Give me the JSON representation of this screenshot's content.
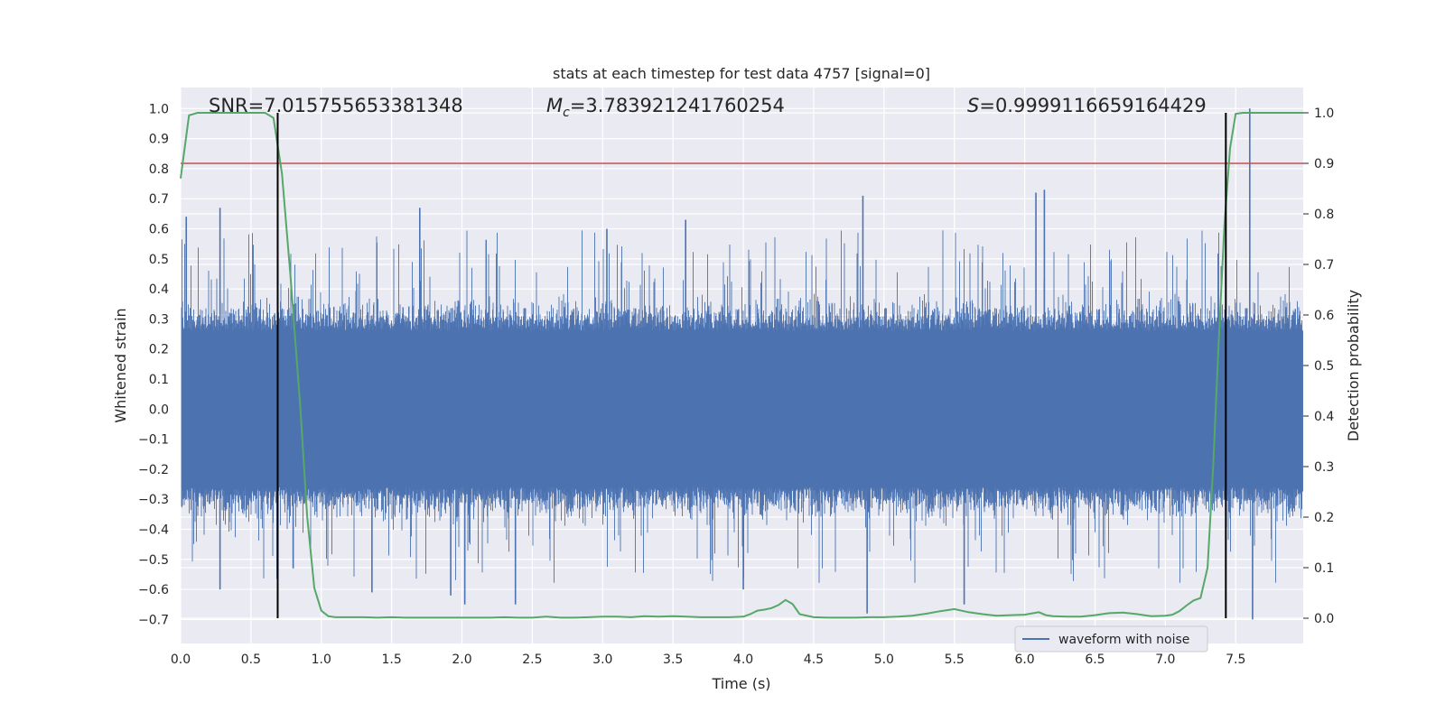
{
  "chart_data": {
    "type": "line",
    "title": "stats at each timestep for test data 4757 [signal=0]",
    "xlabel": "Time (s)",
    "ylabel_left": "Whitened strain",
    "ylabel_right": "Detection probability",
    "xlim": [
      0.0,
      7.98
    ],
    "ylim_left": [
      -0.78,
      1.07
    ],
    "ylim_right": [
      -0.05,
      1.05
    ],
    "x_ticks": [
      "0.0",
      "0.5",
      "1.0",
      "1.5",
      "2.0",
      "2.5",
      "3.0",
      "3.5",
      "4.0",
      "4.5",
      "5.0",
      "5.5",
      "6.0",
      "6.5",
      "7.0",
      "7.5"
    ],
    "y_ticks_left": [
      "1.0",
      "0.9",
      "0.8",
      "0.7",
      "0.6",
      "0.5",
      "0.4",
      "0.3",
      "0.2",
      "0.1",
      "0.0",
      "−0.1",
      "−0.2",
      "−0.3",
      "−0.4",
      "−0.5",
      "−0.6",
      "−0.7"
    ],
    "y_ticks_right": [
      "1.0",
      "0.9",
      "0.8",
      "0.7",
      "0.6",
      "0.5",
      "0.4",
      "0.3",
      "0.2",
      "0.1",
      "0.0"
    ],
    "annotations": {
      "snr": "SNR=7.015755653381348",
      "mc_symbol": "M",
      "mc_sub": "c",
      "mc_value": "=3.783921241760254",
      "s_symbol": "S",
      "s_value": "=0.9999116659164429"
    },
    "threshold": 0.9,
    "vertical_markers": [
      0.69,
      7.43
    ],
    "series": [
      {
        "name": "waveform with noise",
        "axis": "left",
        "color": "#4c72b0",
        "description": "whitened strain noise",
        "peaks": [
          {
            "x": 0.04,
            "y": 0.64
          },
          {
            "x": 0.28,
            "y": 0.67
          },
          {
            "x": 0.28,
            "y": -0.6
          },
          {
            "x": 0.69,
            "y": 0.47
          },
          {
            "x": 0.8,
            "y": -0.53
          },
          {
            "x": 1.36,
            "y": -0.61
          },
          {
            "x": 1.7,
            "y": 0.67
          },
          {
            "x": 1.92,
            "y": -0.62
          },
          {
            "x": 2.02,
            "y": -0.65
          },
          {
            "x": 2.38,
            "y": -0.65
          },
          {
            "x": 3.03,
            "y": 0.6
          },
          {
            "x": 3.59,
            "y": 0.63
          },
          {
            "x": 4.0,
            "y": -0.6
          },
          {
            "x": 4.85,
            "y": 0.71
          },
          {
            "x": 4.88,
            "y": -0.68
          },
          {
            "x": 5.57,
            "y": -0.65
          },
          {
            "x": 6.08,
            "y": 0.72
          },
          {
            "x": 6.14,
            "y": 0.73
          },
          {
            "x": 7.6,
            "y": 1.0
          },
          {
            "x": 7.62,
            "y": -0.7
          }
        ]
      },
      {
        "name": "detection probability",
        "axis": "right",
        "color": "#55a868",
        "x": [
          0.0,
          0.06,
          0.12,
          0.2,
          0.3,
          0.4,
          0.5,
          0.6,
          0.66,
          0.72,
          0.78,
          0.85,
          0.9,
          0.95,
          1.0,
          1.05,
          1.1,
          1.2,
          1.3,
          1.4,
          1.5,
          1.6,
          1.7,
          1.8,
          1.9,
          2.0,
          2.1,
          2.2,
          2.3,
          2.4,
          2.5,
          2.6,
          2.7,
          2.8,
          2.9,
          3.0,
          3.1,
          3.2,
          3.3,
          3.4,
          3.5,
          3.6,
          3.7,
          3.8,
          3.9,
          4.0,
          4.05,
          4.1,
          4.15,
          4.2,
          4.25,
          4.3,
          4.35,
          4.4,
          4.5,
          4.6,
          4.7,
          4.8,
          4.9,
          5.0,
          5.1,
          5.2,
          5.3,
          5.4,
          5.5,
          5.6,
          5.7,
          5.8,
          5.9,
          6.0,
          6.1,
          6.15,
          6.2,
          6.3,
          6.4,
          6.5,
          6.6,
          6.7,
          6.8,
          6.9,
          7.0,
          7.05,
          7.1,
          7.15,
          7.2,
          7.25,
          7.3,
          7.34,
          7.38,
          7.42,
          7.46,
          7.5,
          7.55,
          7.6,
          7.65,
          7.7,
          7.8,
          7.9,
          7.98
        ],
        "y": [
          0.87,
          0.995,
          1.0,
          1.0,
          1.0,
          1.0,
          1.0,
          1.0,
          0.99,
          0.88,
          0.68,
          0.42,
          0.2,
          0.06,
          0.015,
          0.004,
          0.002,
          0.002,
          0.002,
          0.001,
          0.002,
          0.001,
          0.001,
          0.001,
          0.001,
          0.001,
          0.001,
          0.001,
          0.002,
          0.001,
          0.001,
          0.003,
          0.001,
          0.001,
          0.002,
          0.003,
          0.003,
          0.002,
          0.004,
          0.003,
          0.004,
          0.003,
          0.002,
          0.002,
          0.002,
          0.003,
          0.008,
          0.015,
          0.017,
          0.02,
          0.026,
          0.036,
          0.028,
          0.008,
          0.002,
          0.001,
          0.001,
          0.001,
          0.002,
          0.002,
          0.003,
          0.005,
          0.009,
          0.014,
          0.018,
          0.012,
          0.008,
          0.005,
          0.006,
          0.007,
          0.012,
          0.006,
          0.004,
          0.003,
          0.003,
          0.006,
          0.01,
          0.011,
          0.008,
          0.004,
          0.005,
          0.007,
          0.014,
          0.025,
          0.035,
          0.04,
          0.1,
          0.3,
          0.55,
          0.78,
          0.93,
          0.998,
          1.0,
          1.0,
          1.0,
          1.0,
          1.0,
          1.0,
          1.0
        ]
      }
    ],
    "legend": {
      "position": "lower-right",
      "entries": [
        "waveform with noise"
      ]
    }
  }
}
